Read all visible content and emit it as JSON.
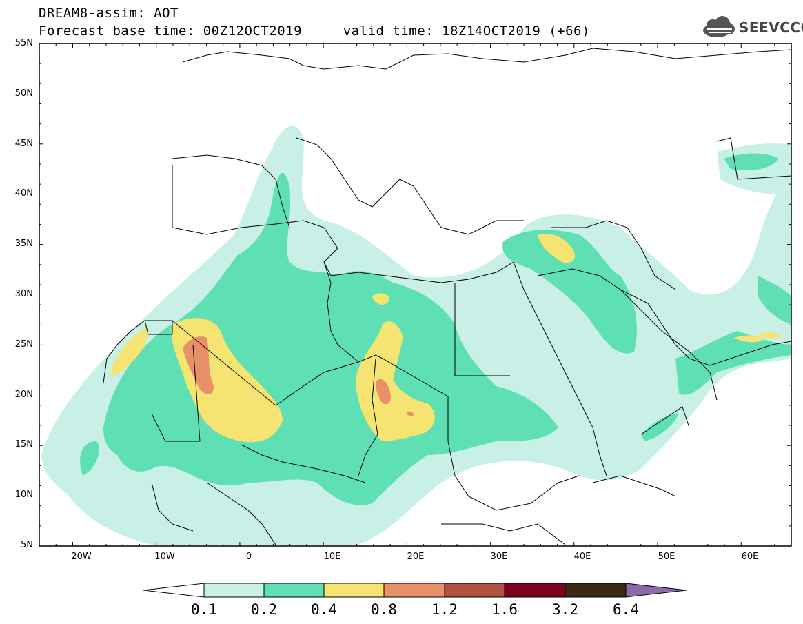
{
  "header": {
    "line1": "DREAM8-assim: AOT",
    "line2": "Forecast base time: 00Z12OCT2019     valid time: 18Z14OCT2019 (+66)"
  },
  "logo": {
    "text": "SEEVCCC",
    "icon": "cloud-icon"
  },
  "map": {
    "lat_labels": [
      "55N",
      "50N",
      "45N",
      "40N",
      "35N",
      "30N",
      "25N",
      "20N",
      "15N",
      "10N",
      "5N"
    ],
    "lon_labels": [
      "20W",
      "10W",
      "0",
      "10E",
      "20E",
      "30E",
      "40E",
      "50E",
      "60E"
    ],
    "lon_range": [
      -25,
      65
    ],
    "lat_range": [
      5,
      55
    ]
  },
  "colorbar": {
    "labels": [
      "0.1",
      "0.2",
      "0.4",
      "0.8",
      "1.2",
      "1.6",
      "3.2",
      "6.4"
    ],
    "colors": [
      "#ffffff",
      "#c8f0e6",
      "#5ee0b4",
      "#f5e472",
      "#e89068",
      "#b05040",
      "#800020",
      "#3c2814",
      "#8a6aa8"
    ]
  },
  "colors": {
    "level1": "#c8f0e6",
    "level2": "#5ee0b4",
    "level3": "#f5e472",
    "level4": "#e89068",
    "level5": "#b05040"
  }
}
